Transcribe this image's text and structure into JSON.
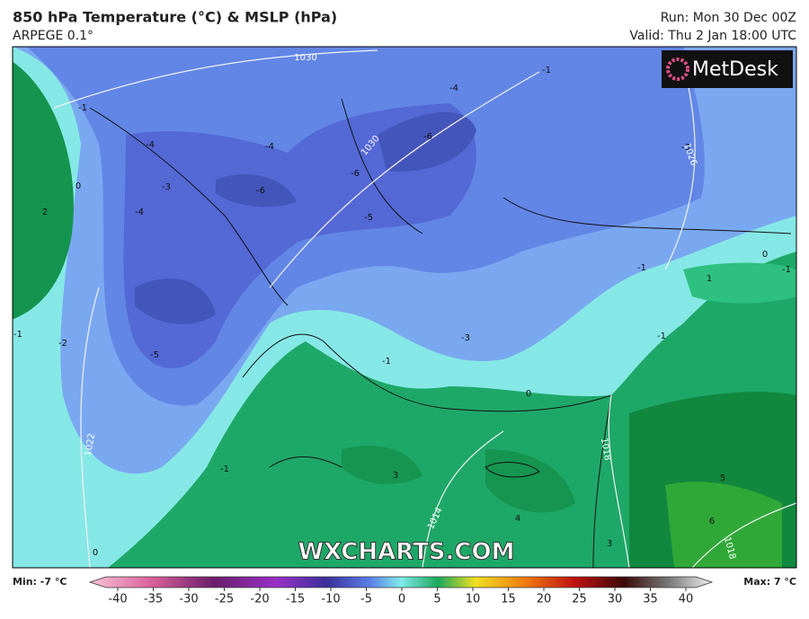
{
  "header": {
    "title": "850 hPa Temperature (°C) & MSLP (hPa)",
    "model": "ARPEGE 0.1°",
    "run": "Run: Mon 30 Dec 00Z",
    "valid": "Valid: Thu 2 Jan 18:00 UTC"
  },
  "logo": "MetDesk",
  "watermark": "WXCHARTS.COM",
  "map": {
    "temperature_labels": [
      "-4",
      "-6",
      "-6",
      "-6",
      "-5",
      "-4",
      "-4",
      "-3",
      "-4",
      "-5",
      "-1",
      "0",
      "-2",
      "-1",
      "-3",
      "-1",
      "-1",
      "0",
      "1",
      "-1",
      "-3",
      "-1",
      "0",
      "-1",
      "3",
      "4",
      "3",
      "5",
      "6",
      "0",
      "2",
      "-1"
    ],
    "isobar_labels": [
      "1030",
      "1030",
      "1026",
      "1022",
      "1014",
      "1018",
      "1018"
    ]
  },
  "colorbar": {
    "min_label": "Min: -7 °C",
    "max_label": "Max: 7 °C",
    "ticks": [
      -40,
      -35,
      -30,
      -25,
      -20,
      -15,
      -10,
      -5,
      0,
      5,
      10,
      15,
      20,
      25,
      30,
      35,
      40
    ]
  }
}
